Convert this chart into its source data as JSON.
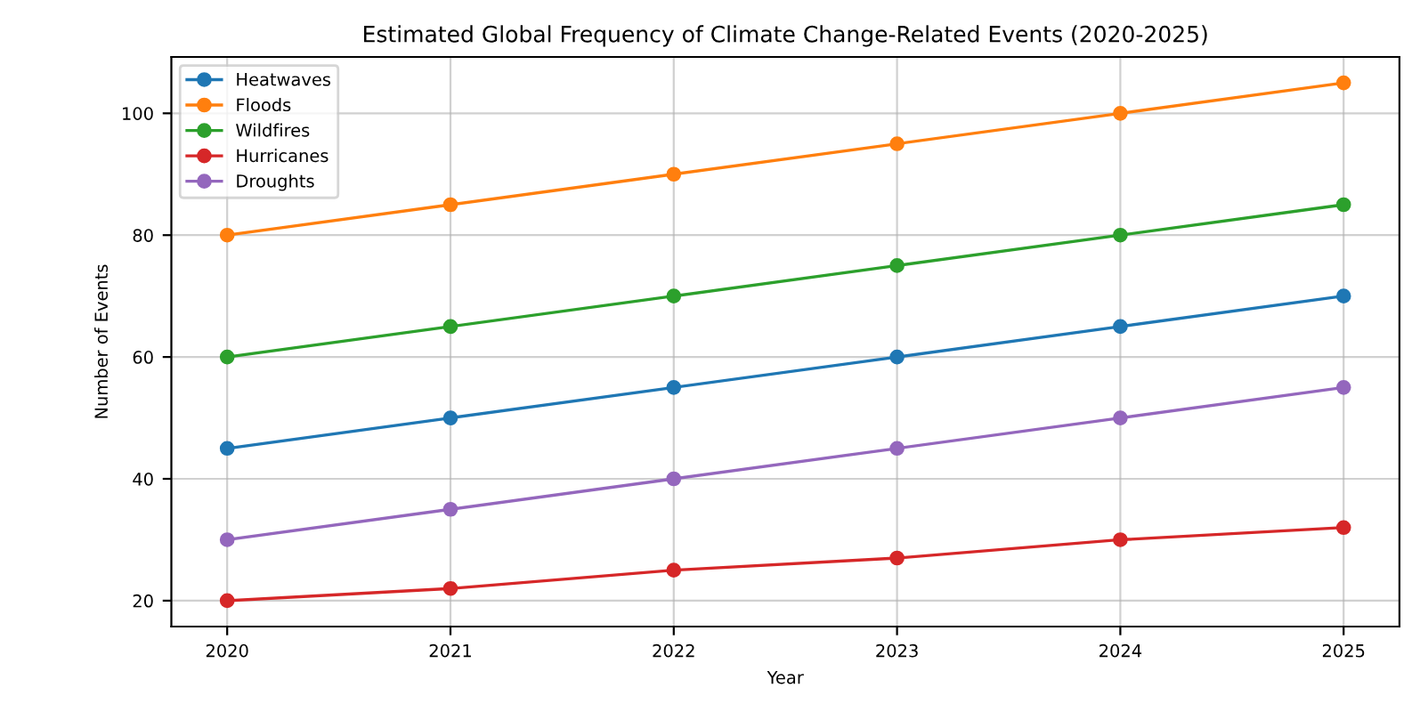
{
  "chart_data": {
    "type": "line",
    "title": "Estimated Global Frequency of Climate Change-Related Events (2020-2025)",
    "xlabel": "Year",
    "ylabel": "Number of Events",
    "x": [
      2020,
      2021,
      2022,
      2023,
      2024,
      2025
    ],
    "series": [
      {
        "name": "Heatwaves",
        "color": "#1f77b4",
        "values": [
          45,
          50,
          55,
          60,
          65,
          70
        ]
      },
      {
        "name": "Floods",
        "color": "#ff7f0e",
        "values": [
          80,
          85,
          90,
          95,
          100,
          105
        ]
      },
      {
        "name": "Wildfires",
        "color": "#2ca02c",
        "values": [
          60,
          65,
          70,
          75,
          80,
          85
        ]
      },
      {
        "name": "Hurricanes",
        "color": "#d62728",
        "values": [
          20,
          22,
          25,
          27,
          30,
          32
        ]
      },
      {
        "name": "Droughts",
        "color": "#9467bd",
        "values": [
          30,
          35,
          40,
          45,
          50,
          55
        ]
      }
    ],
    "xlim": [
      2019.75,
      2025.25
    ],
    "xticks": [
      2020,
      2021,
      2022,
      2023,
      2024,
      2025
    ],
    "ylim": [
      15.75,
      109.25
    ],
    "yticks": [
      20,
      40,
      60,
      80,
      100
    ],
    "grid": true,
    "legend": "top left",
    "marker": "circle",
    "line_style": "solid"
  }
}
